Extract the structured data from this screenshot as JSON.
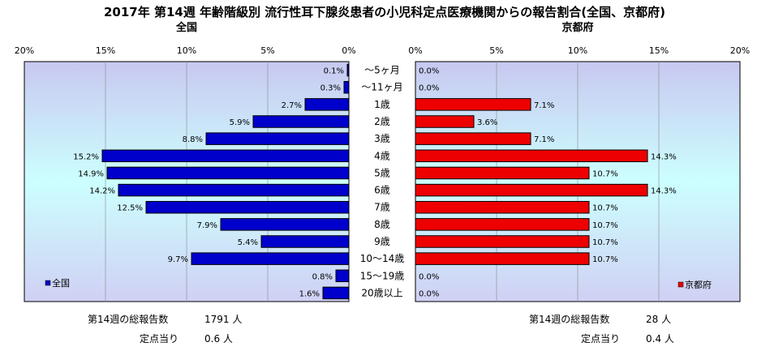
{
  "chart_data": {
    "type": "bar",
    "title": "2017年 第14週 年齢階級別 流行性耳下腺炎患者の小児科定点医療機関からの報告割合(全国、京都府)",
    "categories": [
      "～5ヶ月",
      "～11ヶ月",
      "1歳",
      "2歳",
      "3歳",
      "4歳",
      "5歳",
      "6歳",
      "7歳",
      "8歳",
      "9歳",
      "10～14歳",
      "15～19歳",
      "20歳以上"
    ],
    "xlim": [
      0,
      20
    ],
    "ticks": [
      "0%",
      "5%",
      "10%",
      "15%",
      "20%"
    ],
    "series": [
      {
        "name": "全国",
        "panel_title": "全国",
        "color": "#0000cc",
        "values": [
          0.1,
          0.3,
          2.7,
          5.9,
          8.8,
          15.2,
          14.9,
          14.2,
          12.5,
          7.9,
          5.4,
          9.7,
          0.8,
          1.6
        ],
        "labels": [
          "0.1%",
          "0.3%",
          "2.7%",
          "5.9%",
          "8.8%",
          "15.2%",
          "14.9%",
          "14.2%",
          "12.5%",
          "7.9%",
          "5.4%",
          "9.7%",
          "0.8%",
          "1.6%"
        ]
      },
      {
        "name": "京都府",
        "panel_title": "京都府",
        "color": "#ee0000",
        "values": [
          0,
          0,
          7.1,
          3.6,
          7.1,
          14.3,
          10.7,
          14.3,
          10.7,
          10.7,
          10.7,
          10.7,
          0,
          0
        ],
        "labels": [
          "0.0%",
          "0.0%",
          "7.1%",
          "3.6%",
          "7.1%",
          "14.3%",
          "10.7%",
          "14.3%",
          "10.7%",
          "10.7%",
          "10.7%",
          "10.7%",
          "0.0%",
          "0.0%"
        ]
      }
    ],
    "legend": {
      "left": "全国",
      "right": "京都府"
    }
  },
  "footer": {
    "left": {
      "total_label": "第14週の総報告数",
      "total_value": "1791 人",
      "per_label": "定点当り",
      "per_value": "0.6 人"
    },
    "right": {
      "total_label": "第14週の総報告数",
      "total_value": "28 人",
      "per_label": "定点当り",
      "per_value": "0.4 人"
    }
  },
  "colors": {
    "panel_top": "#c8c8f0",
    "panel_mid": "#ccffff",
    "panel_bottom": "#d0d0f4"
  }
}
